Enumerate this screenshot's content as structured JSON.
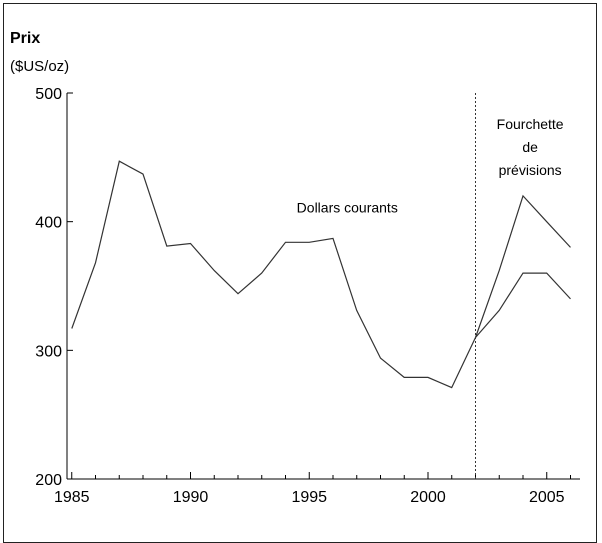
{
  "chart_data": {
    "type": "line",
    "title": "Prix",
    "ylabel": "($US/oz)",
    "xlabel": "",
    "xlim": [
      1984.8,
      2006.4
    ],
    "ylim": [
      200,
      500
    ],
    "xticks": [
      1985,
      1990,
      1995,
      2000,
      2005
    ],
    "yticks": [
      200,
      300,
      400,
      500
    ],
    "grid": false,
    "legend": "none",
    "series": [
      {
        "name": "Dollars courants",
        "x": [
          1985,
          1986,
          1987,
          1988,
          1989,
          1990,
          1991,
          1992,
          1993,
          1994,
          1995,
          1996,
          1997,
          1998,
          1999,
          2000,
          2001,
          2002
        ],
        "y": [
          317,
          368,
          447,
          437,
          381,
          383,
          362,
          344,
          360,
          384,
          384,
          387,
          331,
          294,
          279,
          279,
          271,
          310
        ]
      },
      {
        "name": "Fourchette de prévisions (haut)",
        "x": [
          2002,
          2003,
          2004,
          2005,
          2006
        ],
        "y": [
          310,
          362,
          420,
          400,
          380
        ]
      },
      {
        "name": "Fourchette de prévisions (bas)",
        "x": [
          2002,
          2003,
          2004,
          2005,
          2006
        ],
        "y": [
          310,
          331,
          360,
          360,
          340
        ]
      }
    ],
    "forecast_line_x": 2002,
    "annotations": [
      {
        "lines": [
          "Dollars courants"
        ],
        "anchor_x": 1996.6,
        "anchor_y": 407
      },
      {
        "lines": [
          "Fourchette",
          "de",
          "prévisions"
        ],
        "anchor_x": 2004.3,
        "anchor_y": 472
      }
    ],
    "colors": {
      "line": "#333333",
      "axis": "#000000",
      "forecast_divider": "#333333"
    }
  }
}
